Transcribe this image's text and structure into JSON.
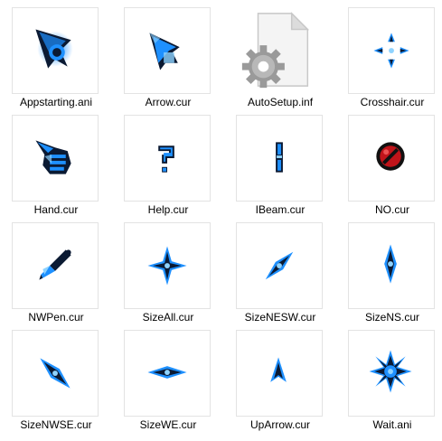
{
  "files": [
    {
      "name": "Appstarting.ani",
      "icon": "cursor-appstarting-icon"
    },
    {
      "name": "Arrow.cur",
      "icon": "cursor-arrow-icon"
    },
    {
      "name": "AutoSetup.inf",
      "icon": "settings-file-icon"
    },
    {
      "name": "Crosshair.cur",
      "icon": "cursor-crosshair-icon"
    },
    {
      "name": "Hand.cur",
      "icon": "cursor-hand-icon"
    },
    {
      "name": "Help.cur",
      "icon": "cursor-help-icon"
    },
    {
      "name": "IBeam.cur",
      "icon": "cursor-ibeam-icon"
    },
    {
      "name": "NO.cur",
      "icon": "cursor-no-icon"
    },
    {
      "name": "NWPen.cur",
      "icon": "cursor-nwpen-icon"
    },
    {
      "name": "SizeAll.cur",
      "icon": "cursor-sizeall-icon"
    },
    {
      "name": "SizeNESW.cur",
      "icon": "cursor-sizenesw-icon"
    },
    {
      "name": "SizeNS.cur",
      "icon": "cursor-sizens-icon"
    },
    {
      "name": "SizeNWSE.cur",
      "icon": "cursor-sizenwse-icon"
    },
    {
      "name": "SizeWE.cur",
      "icon": "cursor-sizewe-icon"
    },
    {
      "name": "UpArrow.cur",
      "icon": "cursor-uparrow-icon"
    },
    {
      "name": "Wait.ani",
      "icon": "cursor-wait-icon"
    }
  ],
  "colors": {
    "cursor_dark": "#0b1a33",
    "cursor_glow": "#1e90ff",
    "cursor_light": "#8fd3ff",
    "no_red": "#c0141a"
  }
}
